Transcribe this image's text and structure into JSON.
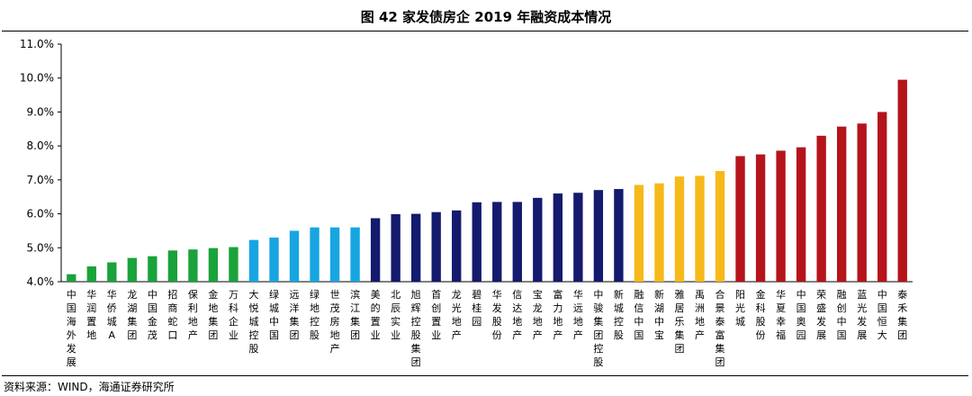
{
  "title": "图  42 家发债房企 2019 年融资成本情况",
  "source": "资料来源：WIND，海通证券研究所",
  "colors": {
    "green": "#1aa23b",
    "lightblue": "#17a5e2",
    "navy": "#141a6e",
    "gold": "#f7b91a",
    "red": "#b5141b"
  },
  "chart_data": {
    "type": "bar",
    "ylim": [
      0.04,
      0.11
    ],
    "yticks": [
      "4.0%",
      "5.0%",
      "6.0%",
      "7.0%",
      "8.0%",
      "9.0%",
      "10.0%",
      "11.0%"
    ],
    "grid": false,
    "categories": [
      "中国海外发展",
      "华润置地",
      "华侨城A",
      "龙湖集团",
      "中国金茂",
      "招商蛇口",
      "保利地产",
      "金地集团",
      "万科企业",
      "大悦城控股",
      "绿城中国",
      "远洋集团",
      "绿地控股",
      "世茂房地产",
      "滨江集团",
      "美的置业",
      "北辰实业",
      "旭辉控股集团",
      "首创置业",
      "龙光地产",
      "碧桂园",
      "华发股份",
      "信达地产",
      "宝龙地产",
      "富力地产",
      "华远地产",
      "中骏集团控股",
      "新城控股",
      "融信中国",
      "新湖中宝",
      "雅居乐集团",
      "禹洲地产",
      "合景泰富集团",
      "阳光城",
      "金科股份",
      "华夏幸福",
      "中国奥园",
      "荣盛发展",
      "融创中国",
      "蓝光发展",
      "中国恒大",
      "泰禾集团"
    ],
    "values": [
      0.0422,
      0.0445,
      0.0457,
      0.047,
      0.0475,
      0.0492,
      0.0495,
      0.0499,
      0.0502,
      0.0523,
      0.053,
      0.055,
      0.056,
      0.056,
      0.056,
      0.0587,
      0.0599,
      0.06,
      0.0605,
      0.061,
      0.0634,
      0.0635,
      0.0635,
      0.0647,
      0.066,
      0.0662,
      0.067,
      0.0673,
      0.0685,
      0.069,
      0.071,
      0.0712,
      0.0726,
      0.077,
      0.0775,
      0.0786,
      0.0796,
      0.083,
      0.0857,
      0.0866,
      0.09,
      0.0995
    ],
    "bar_colors": [
      "green",
      "green",
      "green",
      "green",
      "green",
      "green",
      "green",
      "green",
      "green",
      "lightblue",
      "lightblue",
      "lightblue",
      "lightblue",
      "lightblue",
      "lightblue",
      "navy",
      "navy",
      "navy",
      "navy",
      "navy",
      "navy",
      "navy",
      "navy",
      "navy",
      "navy",
      "navy",
      "navy",
      "navy",
      "gold",
      "gold",
      "gold",
      "gold",
      "gold",
      "red",
      "red",
      "red",
      "red",
      "red",
      "red",
      "red",
      "red",
      "red"
    ]
  }
}
